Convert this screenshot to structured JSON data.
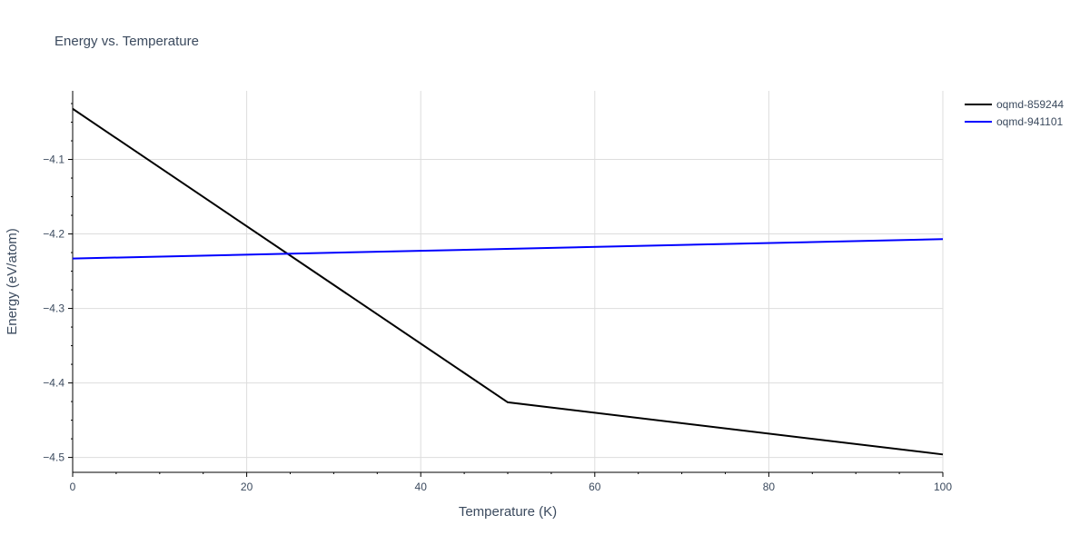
{
  "chart_data": {
    "type": "line",
    "title": "Energy vs. Temperature",
    "xlabel": "Temperature (K)",
    "ylabel": "Energy (eV/atom)",
    "xlim": [
      0,
      100
    ],
    "ylim": [
      -4.52,
      -4.0079
    ],
    "xticks": [
      0,
      20,
      40,
      60,
      80,
      100
    ],
    "yticks": [
      -4.1,
      -4.2,
      -4.3,
      -4.4,
      -4.5
    ],
    "xtick_labels": [
      "0",
      "20",
      "40",
      "60",
      "80",
      "100"
    ],
    "ytick_labels": [
      "−4.1",
      "−4.2",
      "−4.3",
      "−4.4",
      "−4.5"
    ],
    "grid": true,
    "legend_position": "top-right",
    "series": [
      {
        "name": "oqmd-859244",
        "color": "#000000",
        "x": [
          0,
          50,
          100
        ],
        "y": [
          -4.032,
          -4.426,
          -4.496
        ]
      },
      {
        "name": "oqmd-941101",
        "color": "#0000ff",
        "x": [
          0,
          100
        ],
        "y": [
          -4.233,
          -4.207
        ]
      }
    ]
  }
}
